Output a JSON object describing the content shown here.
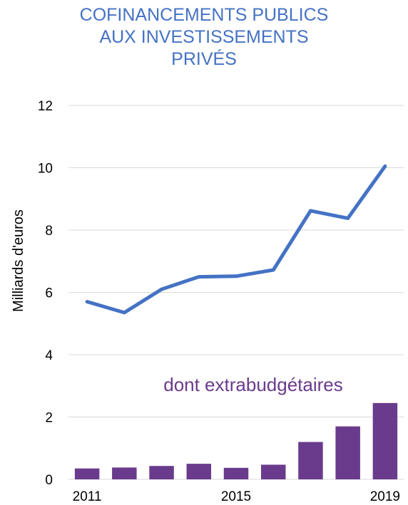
{
  "title_lines": [
    "COFINANCEMENTS PUBLICS",
    "AUX INVESTISSEMENTS",
    "PRIVÉS"
  ],
  "colors": {
    "title": "#4472C4",
    "line": "#4472C4",
    "bars": "#6A3B8C",
    "grid": "#D9D9D9"
  },
  "chart_data": {
    "type": "line+bar",
    "title": "COFINANCEMENTS PUBLICS AUX INVESTISSEMENTS PRIVÉS",
    "ylabel": "Milliards d'euros",
    "xlabel": "",
    "x": [
      2011,
      2012,
      2013,
      2014,
      2015,
      2016,
      2017,
      2018,
      2019
    ],
    "x_tick_labels": [
      "2011",
      "2015",
      "2019"
    ],
    "ylim": [
      0,
      12
    ],
    "y_ticks": [
      "0",
      "2",
      "4",
      "6",
      "8",
      "10",
      "12"
    ],
    "grid": "horizontal",
    "series": [
      {
        "kind": "line",
        "values": [
          5.7,
          5.35,
          6.1,
          6.5,
          6.52,
          6.72,
          8.62,
          8.38,
          10.05
        ]
      },
      {
        "kind": "bar",
        "name": "dont extrabudgétaires",
        "values": [
          0.35,
          0.38,
          0.43,
          0.5,
          0.37,
          0.47,
          1.2,
          1.7,
          2.45
        ]
      }
    ],
    "annotation": "dont extrabudgétaires"
  }
}
